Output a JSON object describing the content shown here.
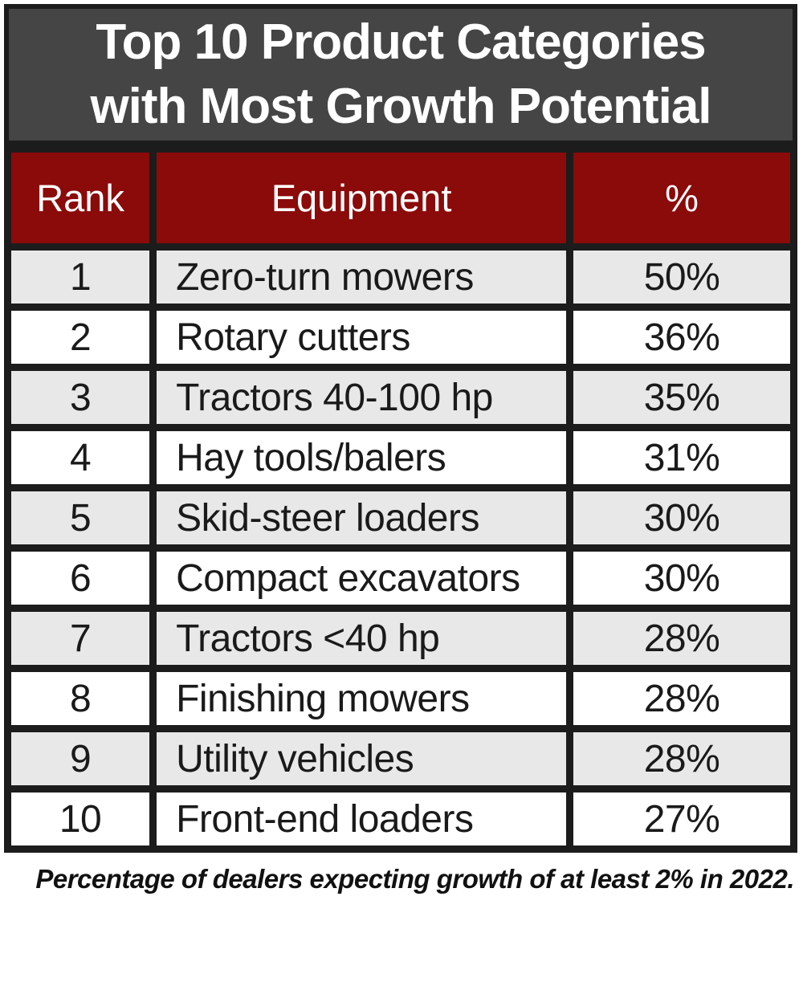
{
  "title": {
    "line1": "Top 10 Product Categories",
    "line2": "with Most Growth Potential"
  },
  "table": {
    "headers": {
      "rank": "Rank",
      "equipment": "Equipment",
      "percent": "%"
    },
    "rows": [
      {
        "rank": "1",
        "equipment": "Zero-turn mowers",
        "percent": "50%"
      },
      {
        "rank": "2",
        "equipment": "Rotary cutters",
        "percent": "36%"
      },
      {
        "rank": "3",
        "equipment": "Tractors 40-100 hp",
        "percent": "35%"
      },
      {
        "rank": "4",
        "equipment": "Hay tools/balers",
        "percent": "31%"
      },
      {
        "rank": "5",
        "equipment": "Skid-steer loaders",
        "percent": "30%"
      },
      {
        "rank": "6",
        "equipment": "Compact excavators",
        "percent": "30%"
      },
      {
        "rank": "7",
        "equipment": "Tractors <40 hp",
        "percent": "28%"
      },
      {
        "rank": "8",
        "equipment": "Finishing mowers",
        "percent": "28%"
      },
      {
        "rank": "9",
        "equipment": "Utility vehicles",
        "percent": "28%"
      },
      {
        "rank": "10",
        "equipment": "Front-end loaders",
        "percent": "27%"
      }
    ]
  },
  "footnote": "Percentage of dealers expecting growth of at least 2% in 2022.",
  "colors": {
    "title_bg": "#454545",
    "header_bg": "#8b0a0a",
    "row_alt_bg": "#e8e8e8",
    "border": "#1c1c1c",
    "title_text": "#ffffff",
    "body_text": "#1a1a1a"
  },
  "chart_data": {
    "type": "table",
    "title": "Top 10 Product Categories with Most Growth Potential",
    "columns": [
      "Rank",
      "Equipment",
      "%"
    ],
    "rows": [
      [
        1,
        "Zero-turn mowers",
        50
      ],
      [
        2,
        "Rotary cutters",
        36
      ],
      [
        3,
        "Tractors 40-100 hp",
        35
      ],
      [
        4,
        "Hay tools/balers",
        31
      ],
      [
        5,
        "Skid-steer loaders",
        30
      ],
      [
        6,
        "Compact excavators",
        30
      ],
      [
        7,
        "Tractors <40 hp",
        28
      ],
      [
        8,
        "Finishing mowers",
        28
      ],
      [
        9,
        "Utility vehicles",
        28
      ],
      [
        10,
        "Front-end loaders",
        27
      ]
    ],
    "values_unit": "percent of dealers",
    "footnote": "Percentage of dealers expecting growth of at least 2% in 2022."
  }
}
